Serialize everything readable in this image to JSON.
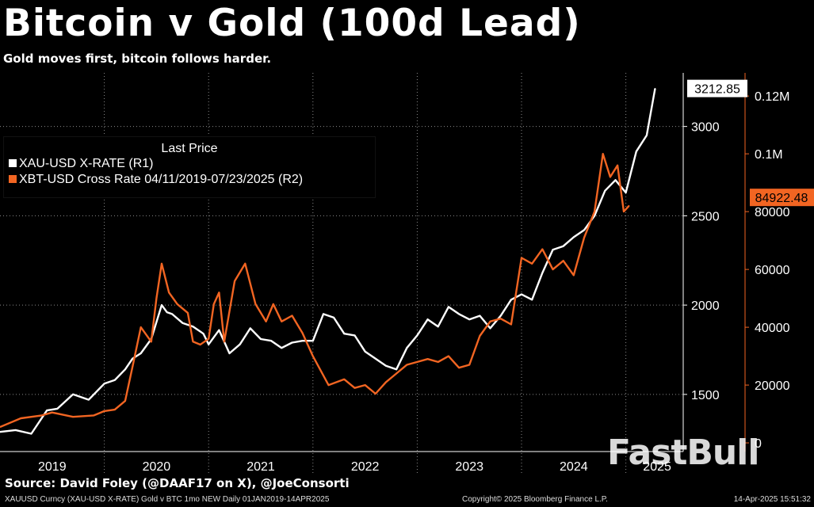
{
  "header": {
    "title": "Bitcoin v Gold (100d Lead)",
    "subtitle": "Gold moves first, bitcoin follows harder."
  },
  "legend": {
    "heading": "Last Price",
    "items": [
      {
        "label": "XAU-USD X-RATE  (R1)",
        "color": "#ffffff"
      },
      {
        "label": "XBT-USD Cross Rate 04/11/2019-07/23/2025   (R2)",
        "color": "#f26522"
      }
    ]
  },
  "source": "Source: David Foley (@DAAF17 on X), @JoeConsorti",
  "footer": {
    "left": "XAUUSD Curncy (XAU-USD X-RATE) Gold v BTC 1mo NEW  Daily 01JAN2019-14APR2025",
    "middle": "Copyright© 2025 Bloomberg Finance L.P.",
    "right": "14-Apr-2025 15:51:32"
  },
  "watermark": "FastBull",
  "chart_data": {
    "type": "line",
    "x_tick_labels": [
      "2019",
      "2020",
      "2021",
      "2022",
      "2023",
      "2024",
      "2025"
    ],
    "x_range": [
      2019.0,
      2025.55
    ],
    "y1": {
      "axis": "R1",
      "ticks": [
        "1500",
        "2000",
        "2500",
        "3000"
      ],
      "range": [
        1180,
        3300
      ],
      "last_value_label": "3212.85"
    },
    "y2": {
      "axis": "R2",
      "ticks": [
        "0",
        "20000",
        "40000",
        "60000",
        "80000",
        "0.1M",
        "0.12M"
      ],
      "range": [
        -3000,
        128000
      ],
      "last_value_label": "84922.48"
    },
    "grid": true,
    "series": [
      {
        "name": "XAU-USD X-RATE  (R1)",
        "axis": "R1",
        "color": "#ffffff",
        "x": [
          2019.0,
          2019.15,
          2019.3,
          2019.45,
          2019.55,
          2019.7,
          2019.85,
          2020.0,
          2020.1,
          2020.2,
          2020.27,
          2020.35,
          2020.45,
          2020.55,
          2020.6,
          2020.65,
          2020.75,
          2020.85,
          2020.95,
          2021.0,
          2021.1,
          2021.2,
          2021.3,
          2021.4,
          2021.5,
          2021.6,
          2021.7,
          2021.8,
          2021.9,
          2022.0,
          2022.1,
          2022.2,
          2022.3,
          2022.4,
          2022.5,
          2022.6,
          2022.7,
          2022.8,
          2022.9,
          2023.0,
          2023.1,
          2023.2,
          2023.3,
          2023.4,
          2023.5,
          2023.6,
          2023.7,
          2023.8,
          2023.9,
          2024.0,
          2024.1,
          2024.2,
          2024.3,
          2024.4,
          2024.5,
          2024.6,
          2024.7,
          2024.8,
          2024.9,
          2025.0,
          2025.1,
          2025.2,
          2025.28
        ],
        "values": [
          1290,
          1300,
          1280,
          1410,
          1420,
          1500,
          1470,
          1560,
          1580,
          1640,
          1700,
          1730,
          1810,
          2000,
          1960,
          1950,
          1900,
          1880,
          1840,
          1780,
          1860,
          1730,
          1780,
          1870,
          1810,
          1800,
          1760,
          1790,
          1800,
          1800,
          1950,
          1930,
          1840,
          1830,
          1740,
          1700,
          1660,
          1640,
          1760,
          1830,
          1920,
          1880,
          1990,
          1950,
          1920,
          1940,
          1870,
          1940,
          2030,
          2060,
          2030,
          2180,
          2310,
          2330,
          2380,
          2420,
          2500,
          2640,
          2700,
          2630,
          2860,
          2950,
          3212
        ]
      },
      {
        "name": "XBT-USD Cross Rate 04/11/2019-07/23/2025   (R2)",
        "axis": "R2",
        "color": "#f26522",
        "x": [
          2019.0,
          2019.2,
          2019.4,
          2019.5,
          2019.7,
          2019.9,
          2020.0,
          2020.1,
          2020.2,
          2020.28,
          2020.35,
          2020.45,
          2020.5,
          2020.55,
          2020.62,
          2020.7,
          2020.8,
          2020.85,
          2020.92,
          2021.0,
          2021.05,
          2021.1,
          2021.15,
          2021.25,
          2021.35,
          2021.45,
          2021.55,
          2021.62,
          2021.7,
          2021.8,
          2021.9,
          2022.0,
          2022.15,
          2022.3,
          2022.4,
          2022.5,
          2022.6,
          2022.7,
          2022.8,
          2022.9,
          2023.0,
          2023.1,
          2023.2,
          2023.3,
          2023.4,
          2023.5,
          2023.6,
          2023.7,
          2023.8,
          2023.9,
          2024.0,
          2024.1,
          2024.2,
          2024.3,
          2024.4,
          2024.5,
          2024.6,
          2024.7,
          2024.78,
          2024.85,
          2024.92,
          2024.98,
          2025.03
        ],
        "values": [
          5500,
          8500,
          9500,
          10500,
          9000,
          9500,
          11000,
          11500,
          14500,
          28000,
          40000,
          35000,
          50000,
          62000,
          52000,
          48000,
          45000,
          35000,
          34000,
          36000,
          48000,
          52000,
          35000,
          56000,
          62000,
          48000,
          42000,
          48000,
          42000,
          44000,
          38000,
          30000,
          20000,
          22000,
          19000,
          20000,
          17000,
          21000,
          24000,
          27000,
          28000,
          29000,
          28000,
          30000,
          26000,
          27000,
          37000,
          42000,
          43000,
          41000,
          64000,
          62000,
          67000,
          60000,
          63000,
          58000,
          71000,
          80000,
          100000,
          92000,
          96000,
          80000,
          82000
        ]
      }
    ]
  }
}
